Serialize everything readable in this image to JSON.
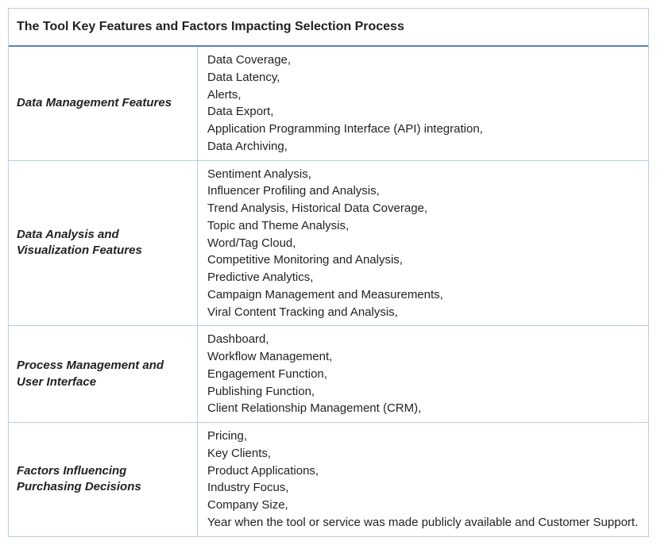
{
  "table": {
    "title": "The Tool Key Features and Factors Impacting Selection Process",
    "border_color": "#b8cce4",
    "title_border_color": "#5a84b0",
    "background_color": "#ffffff",
    "text_color": "#222222",
    "title_fontsize": 16,
    "label_fontsize": 15,
    "item_fontsize": 15,
    "label_column_width": 238,
    "rows": [
      {
        "label": "Data Management Features",
        "items_text": "Data Coverage,\nData Latency,\nAlerts,\nData Export,\nApplication Programming Interface (API) integration,\nData Archiving,"
      },
      {
        "label": "Data Analysis and Visualization Features",
        "items_text": "Sentiment Analysis,\nInfluencer Profiling and Analysis,\nTrend Analysis, Historical Data Coverage,\nTopic and Theme Analysis,\nWord/Tag Cloud,\nCompetitive Monitoring and Analysis,\nPredictive Analytics,\nCampaign Management and Measurements,\nViral Content Tracking and Analysis,"
      },
      {
        "label": "Process Management and User Interface",
        "items_text": "Dashboard,\nWorkflow Management,\nEngagement Function,\nPublishing Function,\nClient Relationship Management (CRM),"
      },
      {
        "label": "Factors Influencing Purchasing Decisions",
        "items_text": "Pricing,\nKey Clients,\nProduct Applications,\nIndustry Focus,\nCompany Size,\nYear when the tool or service was made publicly available and Customer Support."
      }
    ]
  }
}
